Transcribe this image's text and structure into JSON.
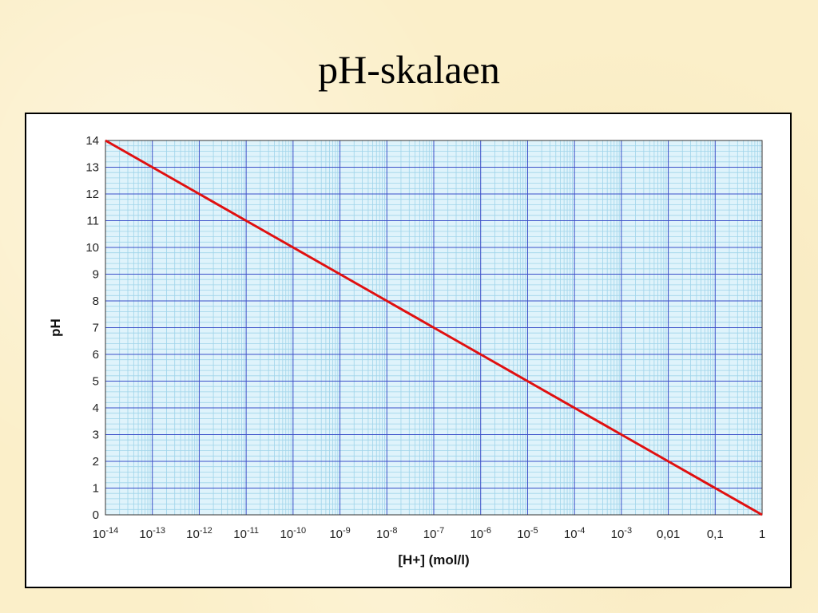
{
  "slide": {
    "title": "pH-skalaen"
  },
  "chart_data": {
    "type": "line",
    "title": "pH-skalaen",
    "xlabel": "[H+] (mol/l)",
    "ylabel": "pH",
    "x_scale": "log",
    "xlim": [
      1e-14,
      1
    ],
    "ylim": [
      0,
      14
    ],
    "grid": true,
    "x_tick_labels": [
      {
        "base": "10",
        "exp": "-14"
      },
      {
        "base": "10",
        "exp": "-13"
      },
      {
        "base": "10",
        "exp": "-12"
      },
      {
        "base": "10",
        "exp": "-11"
      },
      {
        "base": "10",
        "exp": "-10"
      },
      {
        "base": "10",
        "exp": "-9"
      },
      {
        "base": "10",
        "exp": "-8"
      },
      {
        "base": "10",
        "exp": "-7"
      },
      {
        "base": "10",
        "exp": "-6"
      },
      {
        "base": "10",
        "exp": "-5"
      },
      {
        "base": "10",
        "exp": "-4"
      },
      {
        "base": "10",
        "exp": "-3"
      },
      {
        "base": "0,01",
        "exp": ""
      },
      {
        "base": "0,1",
        "exp": ""
      },
      {
        "base": "1",
        "exp": ""
      }
    ],
    "y_tick_labels": [
      "0",
      "1",
      "2",
      "3",
      "4",
      "5",
      "6",
      "7",
      "8",
      "9",
      "10",
      "11",
      "12",
      "13",
      "14"
    ],
    "series": [
      {
        "color": "#e01010",
        "x": [
          1e-14,
          1e-13,
          1e-12,
          1e-11,
          1e-10,
          1e-09,
          1e-08,
          1e-07,
          1e-06,
          1e-05,
          0.0001,
          0.001,
          0.01,
          0.1,
          1
        ],
        "y": [
          14,
          13,
          12,
          11,
          10,
          9,
          8,
          7,
          6,
          5,
          4,
          3,
          2,
          1,
          0
        ]
      }
    ],
    "colors": {
      "plot_bg": "#dff3fb",
      "minor_grid": "#9fd4ea",
      "major_grid": "#3b4fc8"
    }
  }
}
